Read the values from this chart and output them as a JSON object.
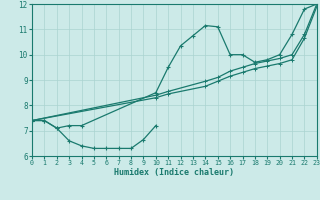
{
  "title": "",
  "xlabel": "Humidex (Indice chaleur)",
  "xlim": [
    0,
    23
  ],
  "ylim": [
    6,
    12
  ],
  "yticks": [
    6,
    7,
    8,
    9,
    10,
    11,
    12
  ],
  "xticks": [
    0,
    1,
    2,
    3,
    4,
    5,
    6,
    7,
    8,
    9,
    10,
    11,
    12,
    13,
    14,
    15,
    16,
    17,
    18,
    19,
    20,
    21,
    22,
    23
  ],
  "background_color": "#cceae8",
  "grid_color": "#aad4d0",
  "line_color": "#1a7a6e",
  "line1_x": [
    0,
    1,
    2,
    3,
    4,
    5,
    6,
    7,
    8,
    9,
    10
  ],
  "line1_y": [
    7.4,
    7.4,
    7.1,
    6.6,
    6.4,
    6.3,
    6.3,
    6.3,
    6.3,
    6.65,
    7.2
  ],
  "line2_x": [
    0,
    1,
    2,
    3,
    4,
    10,
    11,
    12,
    13,
    14,
    15,
    16,
    17,
    18,
    19,
    20,
    21,
    22,
    23
  ],
  "line2_y": [
    7.4,
    7.4,
    7.1,
    7.2,
    7.2,
    8.5,
    9.5,
    10.35,
    10.75,
    11.15,
    11.1,
    10.0,
    10.0,
    9.7,
    9.8,
    10.0,
    10.8,
    11.8,
    12.0
  ],
  "line3_x": [
    0,
    10,
    11,
    14,
    15,
    16,
    17,
    18,
    19,
    20,
    21,
    22,
    23
  ],
  "line3_y": [
    7.4,
    8.4,
    8.55,
    8.95,
    9.1,
    9.35,
    9.5,
    9.65,
    9.75,
    9.85,
    10.0,
    10.8,
    12.0
  ],
  "line4_x": [
    0,
    10,
    11,
    14,
    15,
    16,
    17,
    18,
    19,
    20,
    21,
    22,
    23
  ],
  "line4_y": [
    7.4,
    8.3,
    8.45,
    8.75,
    8.95,
    9.15,
    9.3,
    9.45,
    9.55,
    9.65,
    9.8,
    10.65,
    11.9
  ]
}
